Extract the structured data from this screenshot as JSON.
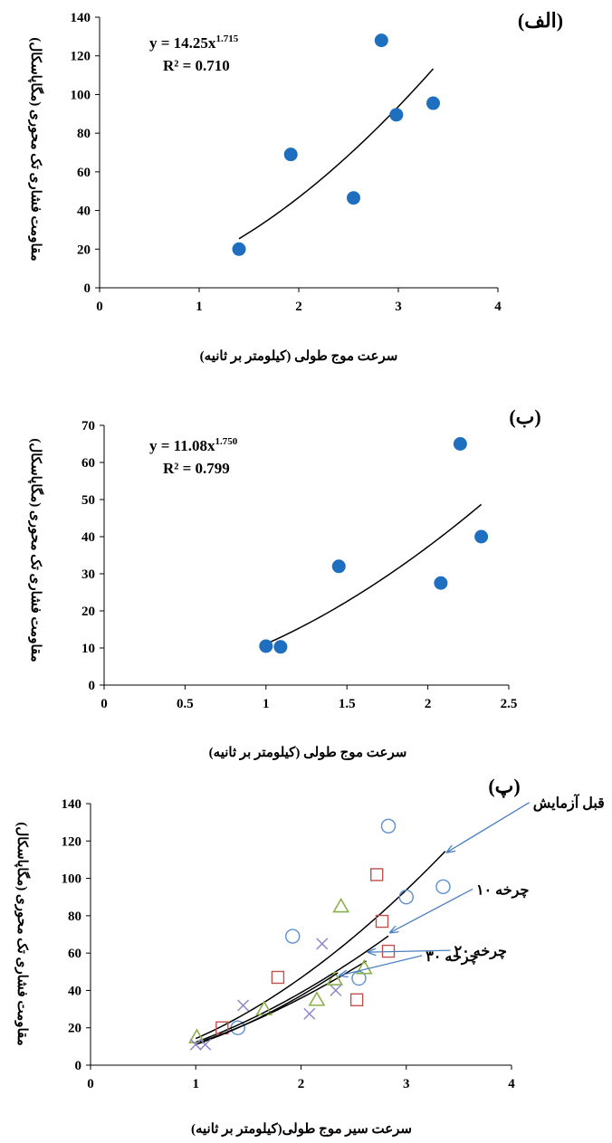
{
  "chart_data": [
    {
      "type": "scatter",
      "panel_label": "(الف)",
      "xlabel": "سرعت موج طولی (کیلومتر بر ثانیه)",
      "ylabel": "مقاومت فشاری تک محوری (مگاپاسکال)",
      "xlim": [
        0,
        4
      ],
      "ylim": [
        0,
        140
      ],
      "xticks": [
        "0",
        "1",
        "2",
        "3",
        "4"
      ],
      "yticks": [
        "0",
        "20",
        "40",
        "60",
        "80",
        "100",
        "120",
        "140"
      ],
      "equation": "y = 14.25x",
      "equation_exponent": "1.715",
      "r2": "R² = 0.710",
      "fit": {
        "a": 14.25,
        "b": 1.715,
        "xrange": [
          1.4,
          3.35
        ]
      },
      "marker_color": "#1f6fc0",
      "points": [
        {
          "x": 1.4,
          "y": 20
        },
        {
          "x": 1.92,
          "y": 69
        },
        {
          "x": 2.55,
          "y": 46.5
        },
        {
          "x": 2.83,
          "y": 128
        },
        {
          "x": 2.98,
          "y": 89.5
        },
        {
          "x": 3.35,
          "y": 95.5
        }
      ]
    },
    {
      "type": "scatter",
      "panel_label": "(ب)",
      "xlabel": "سرعت موج طولی (کیلومتر بر ثانیه)",
      "ylabel": "مقاومت فشاری تک محوری (مگاپاسکال)",
      "xlim": [
        0,
        2.5
      ],
      "ylim": [
        0,
        70
      ],
      "xticks": [
        "0",
        "0.5",
        "1",
        "1.5",
        "2",
        "2.5"
      ],
      "yticks": [
        "0",
        "10",
        "20",
        "30",
        "40",
        "50",
        "60",
        "70"
      ],
      "equation": "y = 11.08x",
      "equation_exponent": "1.750",
      "r2": "R² = 0.799",
      "fit": {
        "a": 11.08,
        "b": 1.75,
        "xrange": [
          1.0,
          2.33
        ]
      },
      "marker_color": "#1f6fc0",
      "points": [
        {
          "x": 1.0,
          "y": 10.5
        },
        {
          "x": 1.09,
          "y": 10.3
        },
        {
          "x": 1.45,
          "y": 32
        },
        {
          "x": 2.08,
          "y": 27.5
        },
        {
          "x": 2.2,
          "y": 65
        },
        {
          "x": 2.33,
          "y": 40
        }
      ]
    },
    {
      "type": "scatter",
      "panel_label": "(پ)",
      "xlabel": "سرعت سیر موج طولی(کیلومتر بر ثانیه)",
      "ylabel": "مقاومت فشاری تک محوری (مگاپاسکال)",
      "xlim": [
        0,
        4
      ],
      "ylim": [
        0,
        140
      ],
      "xticks": [
        "0",
        "1",
        "2",
        "3",
        "4"
      ],
      "yticks": [
        "0",
        "20",
        "40",
        "60",
        "80",
        "100",
        "120",
        "140"
      ],
      "arrow_color": "#4a7fc0",
      "series": [
        {
          "name": "قبل آزمایش",
          "marker": "circle",
          "color": "#5b8fd0",
          "fit": {
            "a": 14.25,
            "b": 1.715,
            "xrange": [
              1.0,
              3.37
            ]
          },
          "label_at": {
            "x": 3.37,
            "y": 114
          },
          "points": [
            {
              "x": 1.4,
              "y": 20
            },
            {
              "x": 1.92,
              "y": 69
            },
            {
              "x": 2.55,
              "y": 46.5
            },
            {
              "x": 2.83,
              "y": 128
            },
            {
              "x": 3.0,
              "y": 90
            },
            {
              "x": 3.35,
              "y": 95.5
            }
          ]
        },
        {
          "name": "چرخه ۱۰",
          "marker": "square",
          "color": "#c0504d",
          "fit": {
            "a": 12.3,
            "b": 1.66,
            "xrange": [
              1.0,
              2.83
            ]
          },
          "label_at": {
            "x": 2.83,
            "y": 71
          },
          "points": [
            {
              "x": 1.25,
              "y": 20
            },
            {
              "x": 1.78,
              "y": 47
            },
            {
              "x": 2.53,
              "y": 35
            },
            {
              "x": 2.72,
              "y": 102
            },
            {
              "x": 2.77,
              "y": 77
            },
            {
              "x": 2.83,
              "y": 61
            }
          ]
        },
        {
          "name": "چرخه ۲۰",
          "marker": "triangle",
          "color": "#8ab04a",
          "fit": {
            "a": 11.6,
            "b": 1.63,
            "xrange": [
              1.0,
              2.62
            ]
          },
          "label_at": {
            "x": 2.62,
            "y": 60.5
          },
          "points": [
            {
              "x": 1.01,
              "y": 15
            },
            {
              "x": 1.65,
              "y": 30
            },
            {
              "x": 2.15,
              "y": 35
            },
            {
              "x": 2.32,
              "y": 46
            },
            {
              "x": 2.38,
              "y": 85
            },
            {
              "x": 2.6,
              "y": 52
            }
          ]
        },
        {
          "name": "چرخه ۳۰",
          "marker": "x",
          "color": "#8a82c8",
          "fit": {
            "a": 11.08,
            "b": 1.75,
            "xrange": [
              1.0,
              2.35
            ]
          },
          "label_at": {
            "x": 2.35,
            "y": 48
          },
          "points": [
            {
              "x": 1.0,
              "y": 11
            },
            {
              "x": 1.09,
              "y": 11
            },
            {
              "x": 1.45,
              "y": 32
            },
            {
              "x": 2.08,
              "y": 27.5
            },
            {
              "x": 2.2,
              "y": 65
            },
            {
              "x": 2.33,
              "y": 40
            }
          ]
        }
      ]
    }
  ]
}
